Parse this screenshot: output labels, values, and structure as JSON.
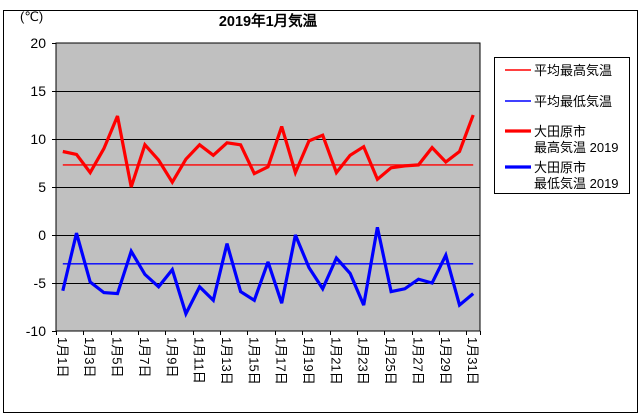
{
  "chart_data": {
    "type": "line",
    "title": "2019年1月気温",
    "y_unit_label": "(℃)",
    "ylim": [
      -10,
      20
    ],
    "y_tick_labels": [
      "20",
      "15",
      "10",
      "5",
      "0",
      "-5",
      "-10"
    ],
    "x_tick_labels": [
      "1月1日",
      "1月3日",
      "1月5日",
      "1月7日",
      "1月9日",
      "1月11日",
      "1月13日",
      "1月15日",
      "1月17日",
      "1月19日",
      "1月21日",
      "1月23日",
      "1月25日",
      "1月27日",
      "1月29日",
      "1月31日"
    ],
    "days": 31,
    "grid": true,
    "plot_bg_color": "#c0c0c0",
    "axis_color": "#000000",
    "red_color": "#ff0000",
    "blue_color": "#0000ff",
    "legend_position": "right",
    "series": [
      {
        "name": "平均最高気温",
        "color": "#ff0000",
        "thickness": 1,
        "constant": 7.3
      },
      {
        "name": "平均最低気温",
        "color": "#0000ff",
        "thickness": 1,
        "constant": -3.0
      },
      {
        "name": "大田原市 最高気温 2019",
        "color": "#ff0000",
        "thickness": 3,
        "values": [
          8.7,
          8.4,
          6.5,
          9.0,
          12.4,
          5.0,
          9.4,
          7.8,
          5.5,
          7.9,
          9.4,
          8.3,
          9.6,
          9.4,
          6.4,
          7.1,
          11.3,
          6.5,
          9.8,
          10.4,
          6.5,
          8.3,
          9.2,
          5.8,
          7.0,
          7.2,
          7.3,
          9.1,
          7.6,
          8.7,
          12.5
        ]
      },
      {
        "name": "大田原市 最低気温 2019",
        "color": "#0000ff",
        "thickness": 3,
        "values": [
          -5.8,
          0.2,
          -4.9,
          -6.0,
          -6.1,
          -1.7,
          -4.1,
          -5.4,
          -3.6,
          -8.2,
          -5.4,
          -6.8,
          -0.9,
          -5.9,
          -6.8,
          -2.8,
          -7.1,
          0.0,
          -3.4,
          -5.6,
          -2.4,
          -4.0,
          -7.3,
          0.8,
          -5.9,
          -5.6,
          -4.6,
          -5.0,
          -2.1,
          -7.3,
          -6.1
        ]
      }
    ],
    "legend": [
      {
        "label_lines": [
          "平均最高気温"
        ],
        "color": "#ff0000",
        "thickness": 1
      },
      {
        "label_lines": [
          "平均最低気温"
        ],
        "color": "#0000ff",
        "thickness": 1
      },
      {
        "label_lines": [
          "大田原市",
          "最高気温 2019"
        ],
        "color": "#ff0000",
        "thickness": 3
      },
      {
        "label_lines": [
          "大田原市",
          "最低気温 2019"
        ],
        "color": "#0000ff",
        "thickness": 3
      }
    ]
  }
}
